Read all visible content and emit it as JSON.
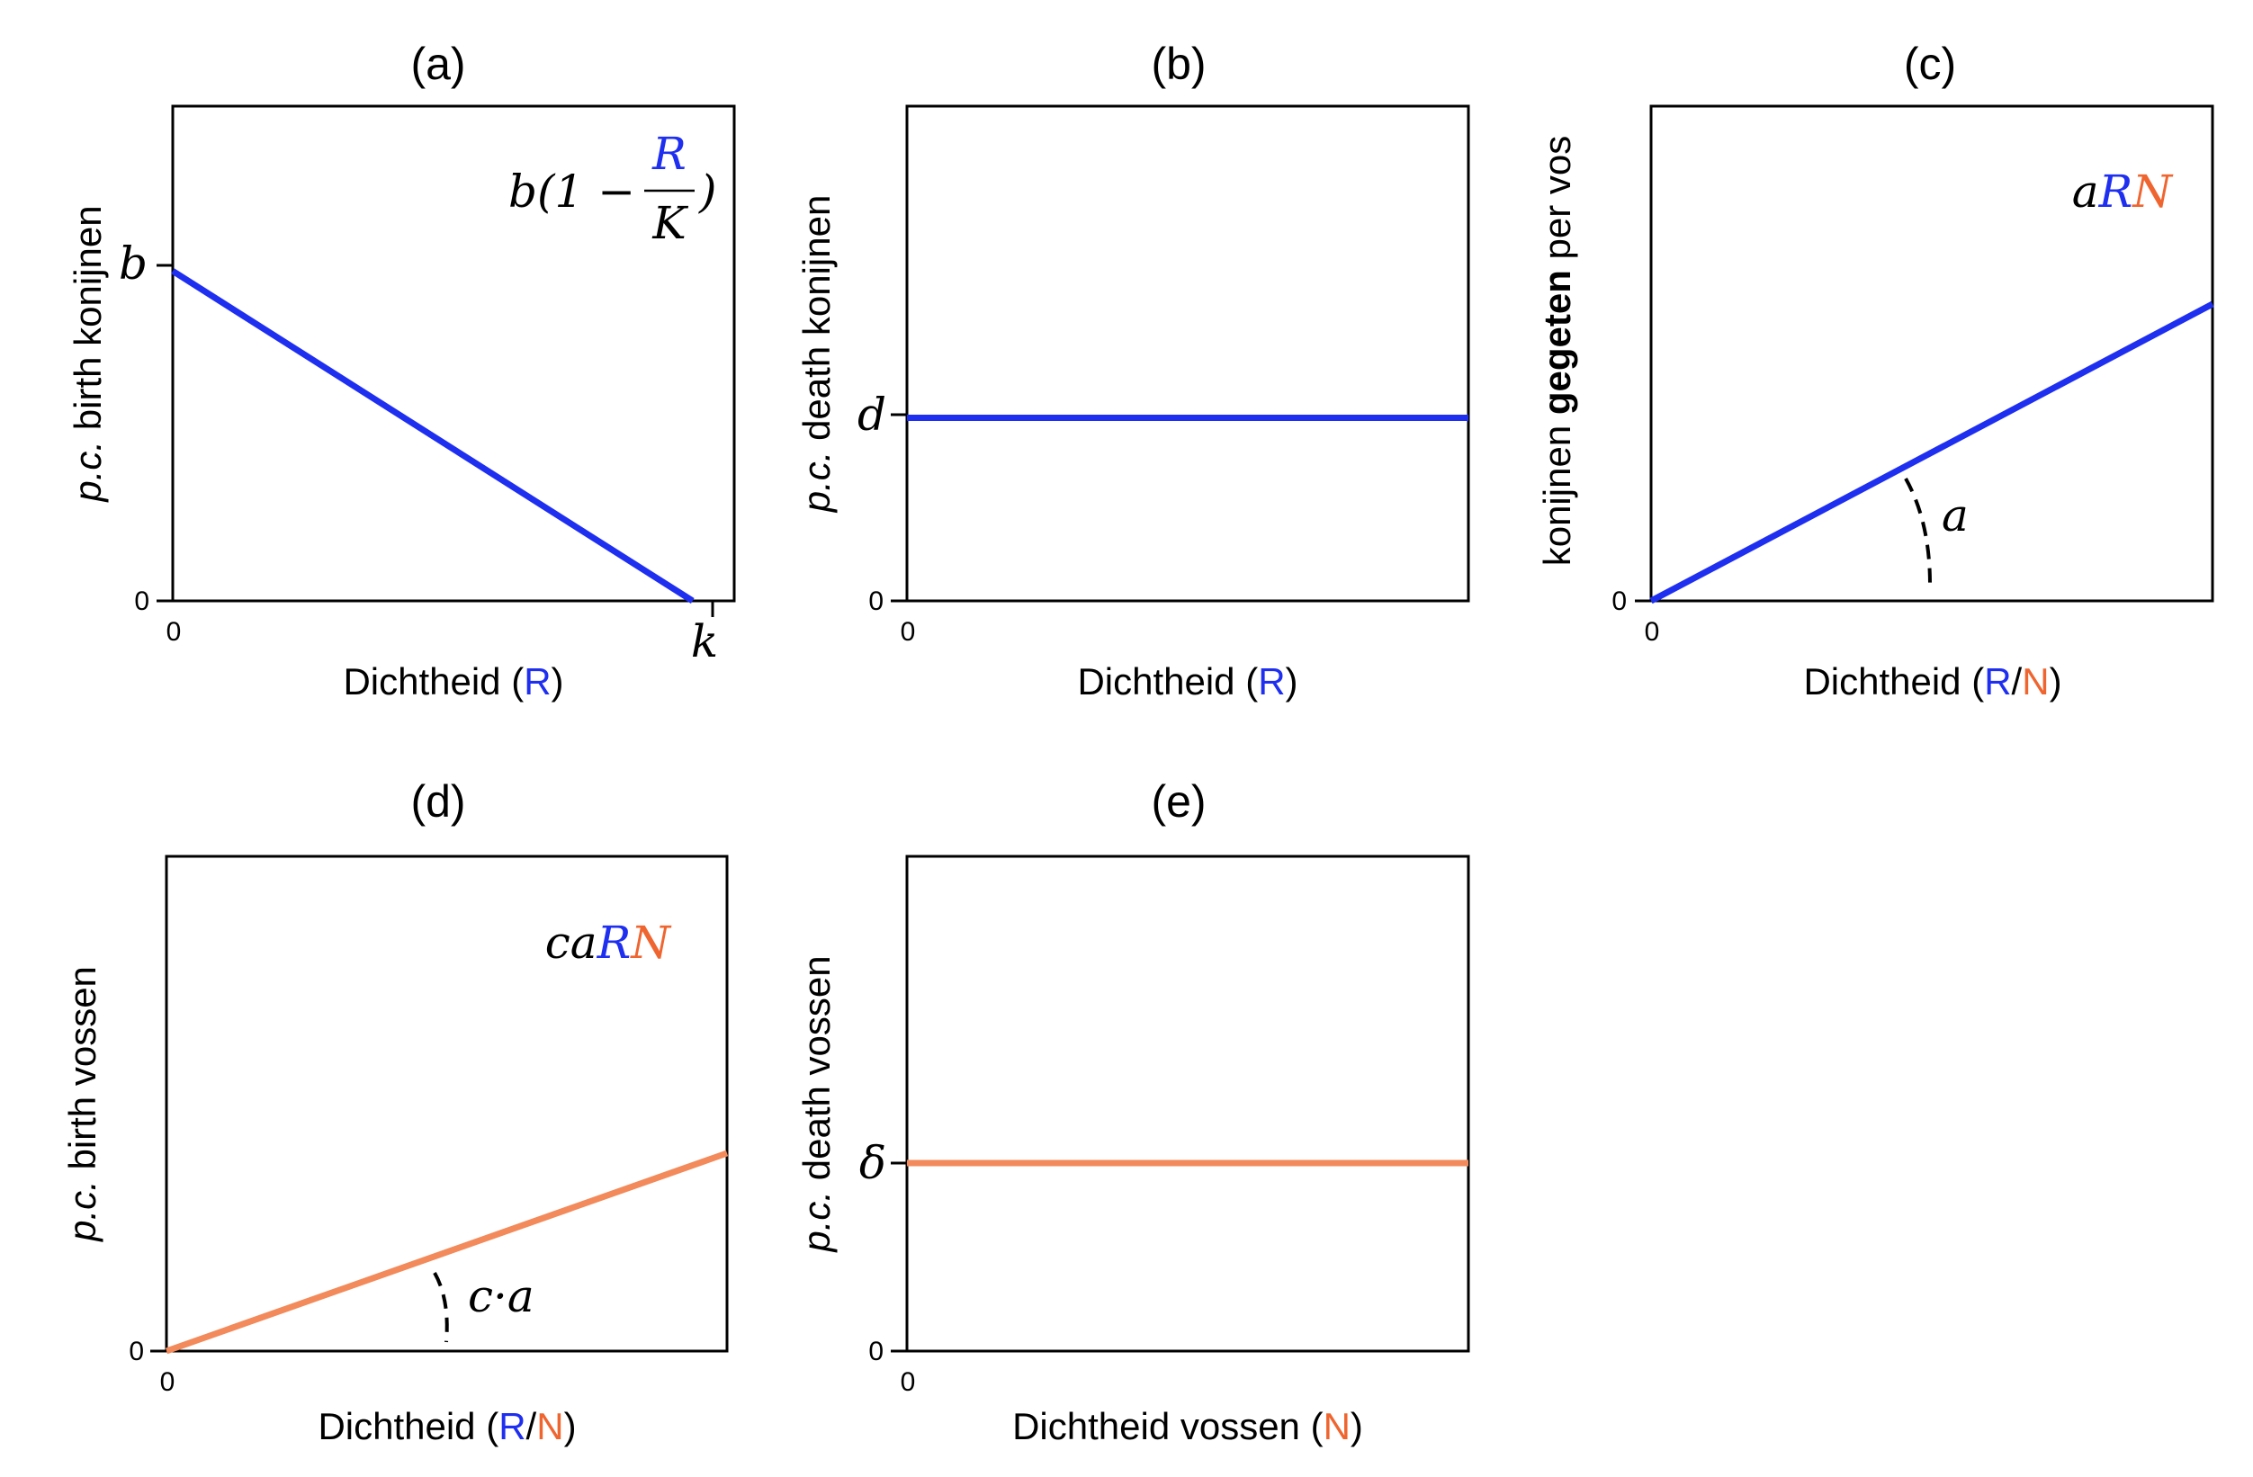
{
  "colors": {
    "rabbit": "#1f2ff0",
    "fox": "#f28a5b",
    "fox_text": "#ef6530",
    "axis": "#000000"
  },
  "chart_data": [
    {
      "type": "line",
      "title": "(a)",
      "xlabel": {
        "text": "Dichtheid (",
        "var": "R",
        "close": ")"
      },
      "ylabel": {
        "italic": "p.c.",
        "rest": " birth konijnen"
      },
      "xticks": [
        "0",
        "k"
      ],
      "yticks": [
        "0",
        "b"
      ],
      "formula": "b(1 − R/K)",
      "formula_parts": {
        "pre": "b(1 −",
        "num": "R",
        "den": "K",
        "post": ")"
      },
      "xlim": [
        0,
        1.08
      ],
      "ylim": [
        0,
        1.5
      ],
      "series": [
        {
          "x": [
            0,
            1
          ],
          "y": [
            1,
            0
          ],
          "color": "rabbit"
        }
      ]
    },
    {
      "type": "line",
      "title": "(b)",
      "xlabel": {
        "text": "Dichtheid (",
        "var": "R",
        "close": ")"
      },
      "ylabel": {
        "italic": "p.c.",
        "rest": " death konijnen"
      },
      "xticks": [
        "0"
      ],
      "yticks": [
        "0",
        "d"
      ],
      "xlim": [
        0,
        1
      ],
      "ylim": [
        0,
        1
      ],
      "series": [
        {
          "x": [
            0,
            1
          ],
          "y": [
            0.37,
            0.37
          ],
          "color": "rabbit"
        }
      ]
    },
    {
      "type": "line",
      "title": "(c)",
      "xlabel": {
        "text": "Dichtheid (",
        "var1": "R",
        "sep": "/",
        "var2": "N",
        "close": ")"
      },
      "ylabel": {
        "pre": "konijnen ",
        "bold": "gegeten",
        "post": " per vos"
      },
      "xticks": [
        "0"
      ],
      "yticks": [
        "0"
      ],
      "formula_parts": {
        "a": "a",
        "R": "R",
        "N": "N"
      },
      "slope_label": "a",
      "xlim": [
        0,
        1
      ],
      "ylim": [
        0,
        1
      ],
      "series": [
        {
          "x": [
            0,
            1
          ],
          "y": [
            0,
            0.6
          ],
          "color": "rabbit"
        }
      ]
    },
    {
      "type": "line",
      "title": "(d)",
      "xlabel": {
        "text": "Dichtheid (",
        "var1": "R",
        "sep": "/",
        "var2": "N",
        "close": ")"
      },
      "ylabel": {
        "italic": "p.c.",
        "rest": " birth vossen"
      },
      "xticks": [
        "0"
      ],
      "yticks": [
        "0"
      ],
      "formula_parts": {
        "ca": "ca",
        "R": "R",
        "N": "N"
      },
      "slope_label": "c·a",
      "xlim": [
        0,
        1
      ],
      "ylim": [
        0,
        1
      ],
      "series": [
        {
          "x": [
            0,
            1
          ],
          "y": [
            0,
            0.4
          ],
          "color": "fox"
        }
      ]
    },
    {
      "type": "line",
      "title": "(e)",
      "xlabel": {
        "text": "Dichtheid vossen (",
        "var": "N",
        "close": ")"
      },
      "ylabel": {
        "italic": "p.c.",
        "rest": " death vossen"
      },
      "xticks": [
        "0"
      ],
      "yticks": [
        "0",
        "δ"
      ],
      "xlim": [
        0,
        1
      ],
      "ylim": [
        0,
        1
      ],
      "series": [
        {
          "x": [
            0,
            1
          ],
          "y": [
            0.38,
            0.38
          ],
          "color": "fox"
        }
      ]
    }
  ]
}
